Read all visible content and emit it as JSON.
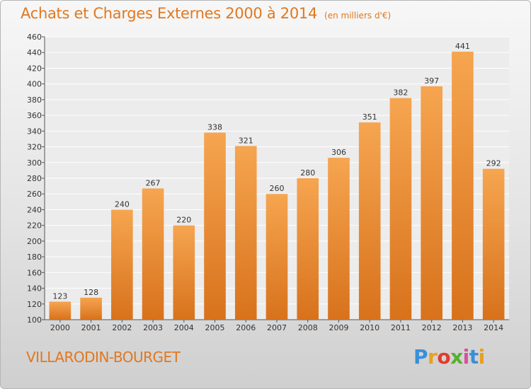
{
  "chart_data": {
    "type": "bar",
    "title": "Achats et Charges Externes 2000 à 2014",
    "unit": "(en milliers d'€)",
    "categories": [
      "2000",
      "2001",
      "2002",
      "2003",
      "2004",
      "2005",
      "2006",
      "2007",
      "2008",
      "2009",
      "2010",
      "2011",
      "2012",
      "2013",
      "2014"
    ],
    "values": [
      123,
      128,
      240,
      267,
      220,
      338,
      321,
      260,
      280,
      306,
      351,
      382,
      397,
      441,
      292
    ],
    "ylim": [
      100,
      460
    ],
    "yticks": [
      100,
      120,
      140,
      160,
      180,
      200,
      220,
      240,
      260,
      280,
      300,
      320,
      340,
      360,
      380,
      400,
      420,
      440,
      460
    ],
    "grid": true,
    "bar_color_top": "#f6a550",
    "bar_color_bottom": "#d8721c"
  },
  "footer": {
    "commune": "VILLARODIN-BOURGET",
    "logo": "Proxiti",
    "logo_colors": [
      "#3a8fd8",
      "#e8a020",
      "#e33b2a",
      "#55b030",
      "#d84fa0",
      "#3a8fd8",
      "#e8a020"
    ]
  }
}
